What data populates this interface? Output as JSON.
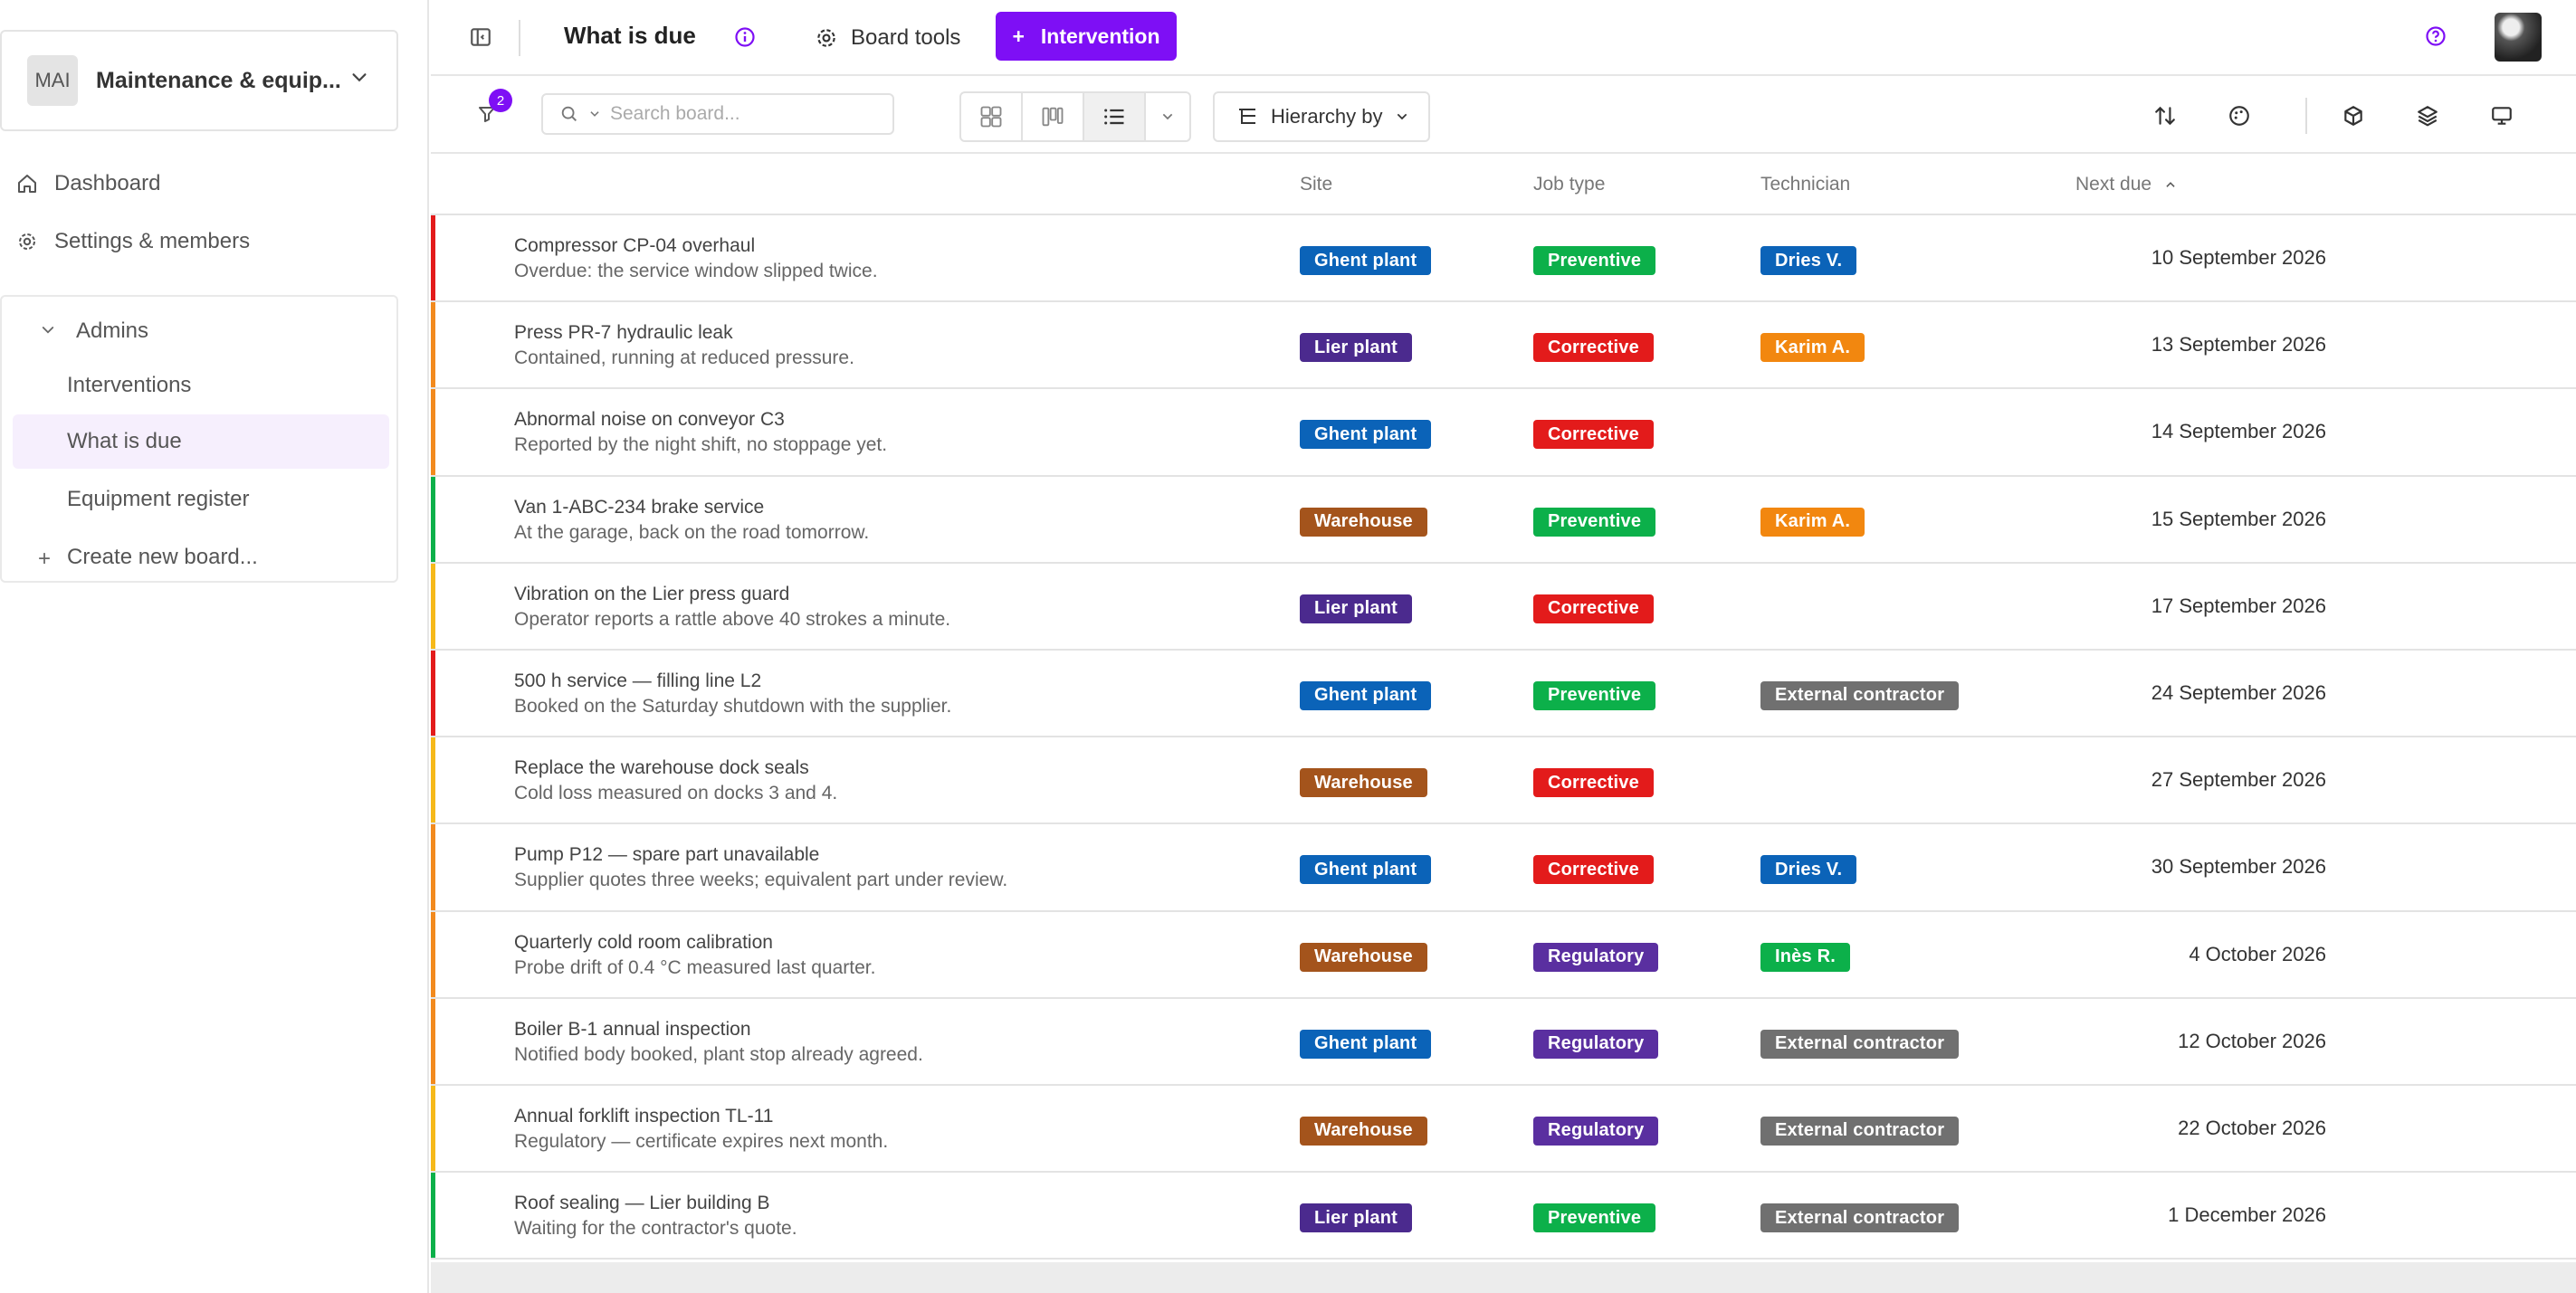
{
  "colors": {
    "accent": "#7e0ff5",
    "site": {
      "Ghent plant": "#0b63b8",
      "Lier plant": "#4b2a8e",
      "Warehouse": "#a4541c"
    },
    "job": {
      "Preventive": "#0cb04a",
      "Corrective": "#e31b1b",
      "Regulatory": "#5a2fa0"
    },
    "tech": {
      "Dries V.": "#0b63b8",
      "Karim A.": "#f2870f",
      "Inès R.": "#0cb04a",
      "External contractor": "#707070"
    },
    "priority": {
      "red": "#e31b1b",
      "orange": "#f28a1e",
      "yellow": "#f6b91a",
      "green": "#0cb04a"
    }
  },
  "sidebar": {
    "workspace": {
      "initials": "MAI",
      "name": "Maintenance & equip..."
    },
    "nav": [
      {
        "label": "Dashboard",
        "icon": "home-icon"
      },
      {
        "label": "Settings & members",
        "icon": "gear-icon"
      }
    ],
    "group": {
      "label": "Admins",
      "items": [
        {
          "label": "Interventions",
          "active": false
        },
        {
          "label": "What is due",
          "active": true
        },
        {
          "label": "Equipment register",
          "active": false
        }
      ],
      "create_label": "Create new board..."
    }
  },
  "header": {
    "title": "What is due",
    "board_tools_label": "Board tools",
    "new_button_label": "Intervention"
  },
  "toolbar": {
    "filter_count": "2",
    "search_placeholder": "Search board...",
    "hierarchy_label": "Hierarchy by"
  },
  "table": {
    "columns": {
      "site": "Site",
      "job_type": "Job type",
      "technician": "Technician",
      "next_due": "Next due"
    },
    "rows": [
      {
        "priority": "red",
        "title": "Compressor CP-04 overhaul",
        "subtitle": "Overdue: the service window slipped twice.",
        "site": "Ghent plant",
        "job_type": "Preventive",
        "technician": "Dries V.",
        "next_due": "10 September 2026"
      },
      {
        "priority": "orange",
        "title": "Press PR-7 hydraulic leak",
        "subtitle": "Contained, running at reduced pressure.",
        "site": "Lier plant",
        "job_type": "Corrective",
        "technician": "Karim A.",
        "next_due": "13 September 2026"
      },
      {
        "priority": "orange",
        "title": "Abnormal noise on conveyor C3",
        "subtitle": "Reported by the night shift, no stoppage yet.",
        "site": "Ghent plant",
        "job_type": "Corrective",
        "technician": "",
        "next_due": "14 September 2026"
      },
      {
        "priority": "green",
        "title": "Van 1-ABC-234 brake service",
        "subtitle": "At the garage, back on the road tomorrow.",
        "site": "Warehouse",
        "job_type": "Preventive",
        "technician": "Karim A.",
        "next_due": "15 September 2026"
      },
      {
        "priority": "yellow",
        "title": "Vibration on the Lier press guard",
        "subtitle": "Operator reports a rattle above 40 strokes a minute.",
        "site": "Lier plant",
        "job_type": "Corrective",
        "technician": "",
        "next_due": "17 September 2026"
      },
      {
        "priority": "red",
        "title": "500 h service — filling line L2",
        "subtitle": "Booked on the Saturday shutdown with the supplier.",
        "site": "Ghent plant",
        "job_type": "Preventive",
        "technician": "External contractor",
        "next_due": "24 September 2026"
      },
      {
        "priority": "yellow",
        "title": "Replace the warehouse dock seals",
        "subtitle": "Cold loss measured on docks 3 and 4.",
        "site": "Warehouse",
        "job_type": "Corrective",
        "technician": "",
        "next_due": "27 September 2026"
      },
      {
        "priority": "orange",
        "title": "Pump P12 — spare part unavailable",
        "subtitle": "Supplier quotes three weeks; equivalent part under review.",
        "site": "Ghent plant",
        "job_type": "Corrective",
        "technician": "Dries V.",
        "next_due": "30 September 2026"
      },
      {
        "priority": "orange",
        "title": "Quarterly cold room calibration",
        "subtitle": "Probe drift of 0.4 °C measured last quarter.",
        "site": "Warehouse",
        "job_type": "Regulatory",
        "technician": "Inès R.",
        "next_due": "4 October 2026"
      },
      {
        "priority": "orange",
        "title": "Boiler B-1 annual inspection",
        "subtitle": "Notified body booked, plant stop already agreed.",
        "site": "Ghent plant",
        "job_type": "Regulatory",
        "technician": "External contractor",
        "next_due": "12 October 2026"
      },
      {
        "priority": "yellow",
        "title": "Annual forklift inspection TL-11",
        "subtitle": "Regulatory — certificate expires next month.",
        "site": "Warehouse",
        "job_type": "Regulatory",
        "technician": "External contractor",
        "next_due": "22 October 2026"
      },
      {
        "priority": "green",
        "title": "Roof sealing — Lier building B",
        "subtitle": "Waiting for the contractor's quote.",
        "site": "Lier plant",
        "job_type": "Preventive",
        "technician": "External contractor",
        "next_due": "1 December 2026"
      }
    ]
  }
}
